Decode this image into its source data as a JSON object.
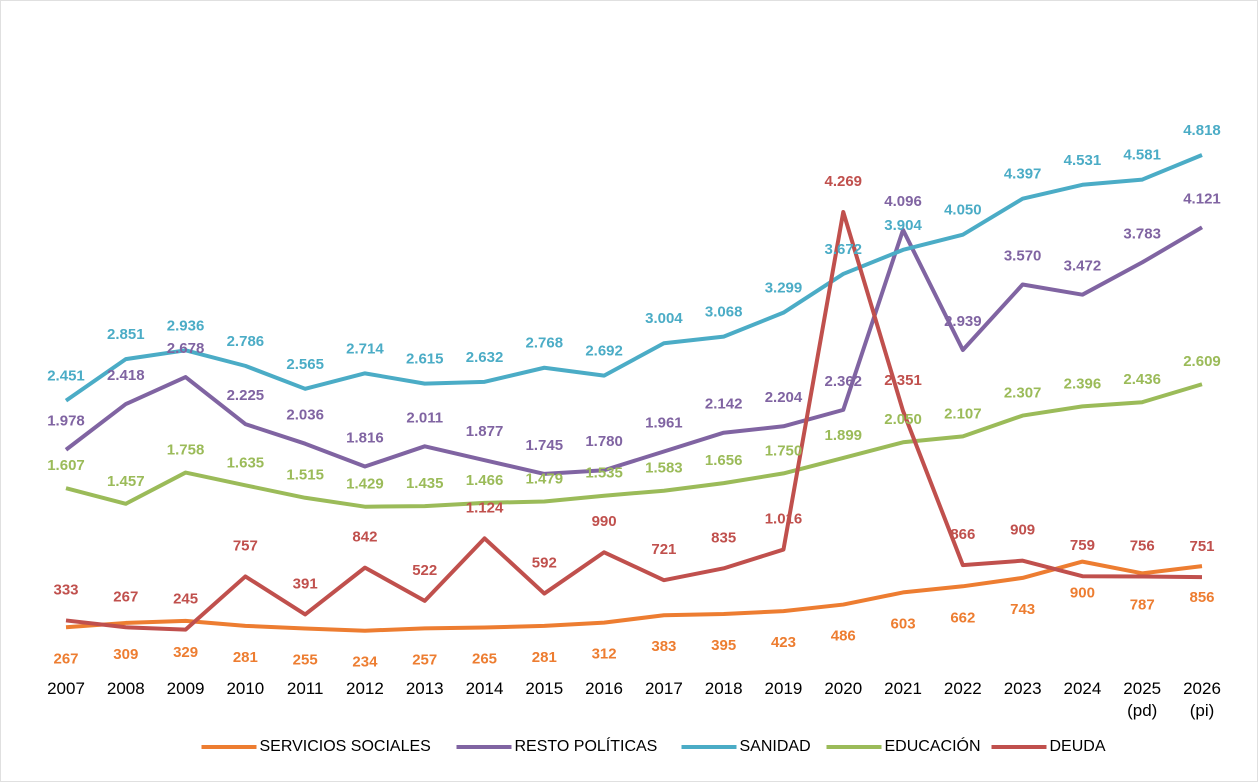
{
  "chart_data": {
    "type": "line",
    "categories": [
      "2007",
      "2008",
      "2009",
      "2010",
      "2011",
      "2012",
      "2013",
      "2014",
      "2015",
      "2016",
      "2017",
      "2018",
      "2019",
      "2020",
      "2021",
      "2022",
      "2023",
      "2024",
      "2025\n(pd)",
      "2026\n(pi)"
    ],
    "series": [
      {
        "name": "SERVICIOS SOCIALES",
        "color": "#ed7d31",
        "values": [
          267,
          309,
          329,
          281,
          255,
          234,
          257,
          265,
          281,
          312,
          383,
          395,
          423,
          486,
          603,
          662,
          743,
          900,
          787,
          856
        ],
        "value_labels": [
          "267",
          "309",
          "329",
          "281",
          "255",
          "234",
          "257",
          "265",
          "281",
          "312",
          "383",
          "395",
          "423",
          "486",
          "603",
          "662",
          "743",
          "900",
          "787",
          "856"
        ]
      },
      {
        "name": "RESTO POLÍTICAS",
        "color": "#8064a2",
        "values": [
          1978,
          2418,
          2678,
          2225,
          2036,
          1816,
          2011,
          1877,
          1745,
          1780,
          1961,
          2142,
          2204,
          2362,
          4096,
          2939,
          3570,
          3472,
          3783,
          4121
        ],
        "value_labels": [
          "1.978",
          "2.418",
          "2.678",
          "2.225",
          "2.036",
          "1.816",
          "2.011",
          "1.877",
          "1.745",
          "1.780",
          "1.961",
          "2.142",
          "2.204",
          "2.362",
          "4.096",
          "2.939",
          "3.570",
          "3.472",
          "3.783",
          "4.121"
        ]
      },
      {
        "name": "SANIDAD",
        "color": "#4bacc6",
        "values": [
          2451,
          2851,
          2936,
          2786,
          2565,
          2714,
          2615,
          2632,
          2768,
          2692,
          3004,
          3068,
          3299,
          3672,
          3904,
          4050,
          4397,
          4531,
          4581,
          4818
        ],
        "value_labels": [
          "2.451",
          "2.851",
          "2.936",
          "2.786",
          "2.565",
          "2.714",
          "2.615",
          "2.632",
          "2.768",
          "2.692",
          "3.004",
          "3.068",
          "3.299",
          "3.672",
          "3.904",
          "4.050",
          "4.397",
          "4.531",
          "4.581",
          "4.818"
        ]
      },
      {
        "name": "EDUCACIÓN",
        "color": "#9bbb59",
        "values": [
          1607,
          1457,
          1758,
          1635,
          1515,
          1429,
          1435,
          1466,
          1479,
          1535,
          1583,
          1656,
          1750,
          1899,
          2050,
          2107,
          2307,
          2396,
          2436,
          2609
        ],
        "value_labels": [
          "1.607",
          "1.457",
          "1.758",
          "1.635",
          "1.515",
          "1.429",
          "1.435",
          "1.466",
          "1.479",
          "1.535",
          "1.583",
          "1.656",
          "1.750",
          "1.899",
          "2.050",
          "2.107",
          "2.307",
          "2.396",
          "2.436",
          "2.609"
        ]
      },
      {
        "name": "DEUDA",
        "color": "#c0504d",
        "values": [
          333,
          267,
          245,
          757,
          391,
          842,
          522,
          1124,
          592,
          990,
          721,
          835,
          1016,
          4269,
          2351,
          866,
          909,
          759,
          756,
          751
        ],
        "value_labels": [
          "333",
          "267",
          "245",
          "757",
          "391",
          "842",
          "522",
          "1.124",
          "592",
          "990",
          "721",
          "835",
          "1.016",
          "4.269",
          "2.351",
          "866",
          "909",
          "759",
          "756",
          "751"
        ]
      }
    ],
    "legend": "bottom"
  }
}
